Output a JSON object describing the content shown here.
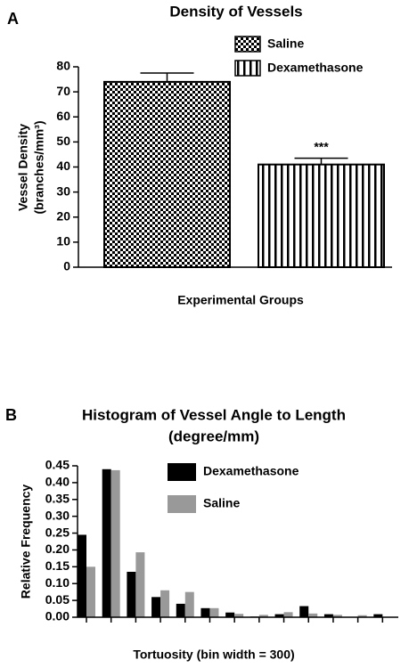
{
  "chart_data": [
    {
      "type": "bar",
      "panel": "A",
      "title": "Density of Vessels",
      "ylabel": [
        "Vessel Density",
        "(branches/mm³)"
      ],
      "xlabel": "Experimental Groups",
      "categories": [
        "Saline",
        "Dexamethasone"
      ],
      "values": [
        74,
        41
      ],
      "errors": [
        3.5,
        2.5
      ],
      "patterns": [
        "checker",
        "vertical-stripes"
      ],
      "annotations": [
        null,
        "***"
      ],
      "ylim": [
        0,
        80
      ],
      "yticks": [
        0,
        10,
        20,
        30,
        40,
        50,
        60,
        70,
        80
      ]
    },
    {
      "type": "grouped-bar",
      "panel": "B",
      "title": [
        "Histogram of Vessel Angle to Length",
        "(degree/mm)"
      ],
      "ylabel": "Relative Frequency",
      "xlabel": "Tortuosity (bin width = 300)",
      "categories": [
        null,
        null,
        null,
        null,
        null,
        null,
        null,
        null,
        null,
        null,
        null,
        null,
        null
      ],
      "series": [
        {
          "name": "Dexamethasone",
          "color": "#000000",
          "values": [
            0.245,
            0.44,
            0.135,
            0.06,
            0.04,
            0.027,
            0.014,
            0.002,
            0.009,
            0.033,
            0.009,
            0.001,
            0.009
          ]
        },
        {
          "name": "Saline",
          "color": "#999999",
          "values": [
            0.15,
            0.437,
            0.193,
            0.08,
            0.075,
            0.027,
            0.01,
            0.007,
            0.015,
            0.011,
            0.007,
            0.006,
            0
          ]
        }
      ],
      "ylim": [
        0,
        0.45
      ],
      "yticks": [
        {
          "value": 0,
          "label": "0.00"
        },
        0.05,
        {
          "value": 0.1,
          "label": "0.10"
        },
        0.15,
        {
          "value": 0.2,
          "label": "0.20"
        },
        0.25,
        {
          "value": 0.3,
          "label": "0.30"
        },
        0.35,
        {
          "value": 0.4,
          "label": "0.40"
        },
        0.45
      ]
    }
  ]
}
